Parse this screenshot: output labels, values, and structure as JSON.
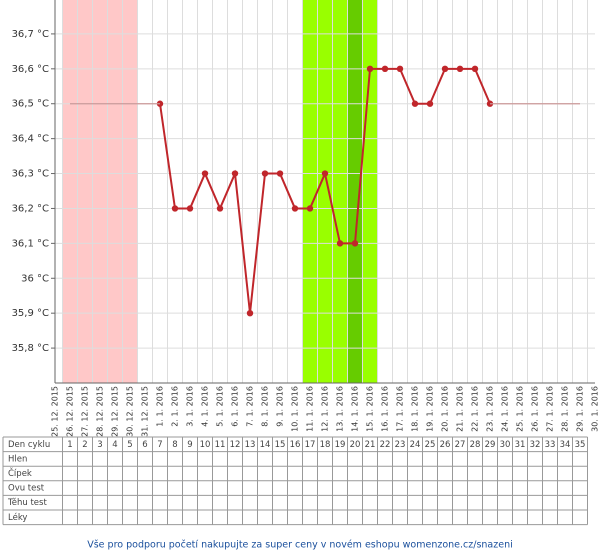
{
  "chart_data": {
    "type": "line",
    "x": [
      "25. 12. 2015",
      "26. 12. 2015",
      "27. 12. 2015",
      "28. 12. 2015",
      "29. 12. 2015",
      "30. 12. 2015",
      "31. 12. 2015",
      "1. 1. 2016",
      "2. 1. 2016",
      "3. 1. 2016",
      "4. 1. 2016",
      "5. 1. 2016",
      "6. 1. 2016",
      "7. 1. 2016",
      "8. 1. 2016",
      "9. 1. 2016",
      "10. 1. 2016",
      "11. 1. 2016",
      "12. 1. 2016",
      "13. 1. 2016",
      "14. 1. 2016",
      "15. 1. 2016",
      "16. 1. 2016",
      "17. 1. 2016",
      "18. 1. 2016",
      "19. 1. 2016",
      "20. 1. 2016",
      "21. 1. 2016",
      "22. 1. 2016",
      "23. 1. 2016",
      "24. 1. 2016",
      "25. 1. 2016",
      "26. 1. 2016",
      "27. 1. 2016",
      "28. 1. 2016",
      "29. 1. 2016",
      "30. 1. 2016"
    ],
    "series": [
      {
        "color": "#c0262b",
        "values": [
          null,
          null,
          null,
          null,
          null,
          null,
          null,
          36.5,
          36.2,
          36.2,
          36.3,
          36.2,
          36.3,
          35.9,
          36.3,
          36.3,
          36.2,
          36.2,
          36.3,
          36.1,
          36.1,
          36.6,
          36.6,
          36.6,
          36.5,
          36.5,
          36.6,
          36.6,
          36.6,
          36.5,
          null,
          null,
          null,
          null,
          null,
          null,
          null
        ]
      },
      {
        "color": "#c99",
        "values": [
          null,
          36.5,
          36.5,
          36.5,
          36.5,
          36.5,
          36.5,
          36.5,
          null,
          null,
          null,
          null,
          null,
          null,
          null,
          null,
          null,
          null,
          null,
          null,
          null,
          null,
          null,
          null,
          null,
          null,
          null,
          null,
          null,
          36.5,
          36.5,
          36.5,
          36.5,
          36.5,
          36.5,
          36.5,
          null
        ]
      }
    ],
    "period_days": [
      1,
      2,
      3,
      4,
      5
    ],
    "period_color": "#ffc8c8",
    "fertile_days": [
      17,
      18,
      19,
      20,
      21
    ],
    "fertile_color": "#99ff00",
    "ovulation_day": 20,
    "ovulation_color": "#66cc00",
    "ylim": [
      35.7,
      36.8
    ],
    "yticks": [
      {
        "value": 35.8,
        "label": "35,8 °C"
      },
      {
        "value": 35.9,
        "label": "35,9 °C"
      },
      {
        "value": 36,
        "label": "36 °C"
      },
      {
        "value": 36.1,
        "label": "36,1 °C"
      },
      {
        "value": 36.2,
        "label": "36,2 °C"
      },
      {
        "value": 36.3,
        "label": "36,3 °C"
      },
      {
        "value": 36.4,
        "label": "36,4 °C"
      },
      {
        "value": 36.5,
        "label": "36,5 °C"
      },
      {
        "value": 36.6,
        "label": "36,6 °C"
      },
      {
        "value": 36.7,
        "label": "36,7 °C"
      }
    ],
    "grid": true
  },
  "table": {
    "rows": [
      "Den cyklu",
      "Hlen",
      "Čípek",
      "Ovu test",
      "Těhu test",
      "Léky"
    ],
    "cycle_days": [
      1,
      2,
      3,
      4,
      5,
      6,
      7,
      8,
      9,
      10,
      11,
      12,
      13,
      14,
      15,
      16,
      17,
      18,
      19,
      20,
      21,
      22,
      23,
      24,
      25,
      26,
      27,
      28,
      29,
      30,
      31,
      32,
      33,
      34,
      35
    ]
  },
  "footer": "Vše pro podporu početí nakupujte za super ceny v novém eshopu womenzone.cz/snazeni"
}
